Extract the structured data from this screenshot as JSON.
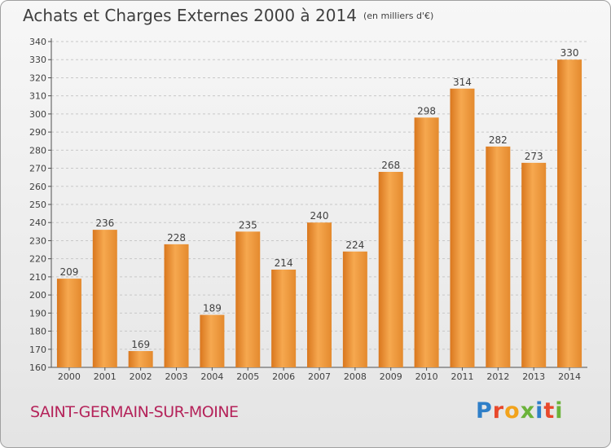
{
  "title": "Achats et Charges Externes 2000 à 2014",
  "unit": "(en milliers d'€)",
  "location": "SAINT-GERMAIN-SUR-MOINE",
  "brand": {
    "letters": [
      "P",
      "r",
      "o",
      "x",
      "i",
      "t",
      "i"
    ],
    "colors": [
      "#2f7fc8",
      "#e8482b",
      "#f2a31c",
      "#6bb33a",
      "#2f7fc8",
      "#e8482b",
      "#6bb33a"
    ]
  },
  "colors": {
    "bar_light": "#f6a84f",
    "bar_dark": "#d9771e",
    "grid": "#c8c8c8"
  },
  "chart_data": {
    "type": "bar",
    "categories": [
      "2000",
      "2001",
      "2002",
      "2003",
      "2004",
      "2005",
      "2006",
      "2007",
      "2008",
      "2009",
      "2010",
      "2011",
      "2012",
      "2013",
      "2014"
    ],
    "values": [
      209,
      236,
      169,
      228,
      189,
      235,
      214,
      240,
      224,
      268,
      298,
      314,
      282,
      273,
      330
    ],
    "ylim": [
      160,
      340
    ],
    "ytick_step": 10,
    "grid": true,
    "xlabel": "",
    "ylabel": ""
  }
}
